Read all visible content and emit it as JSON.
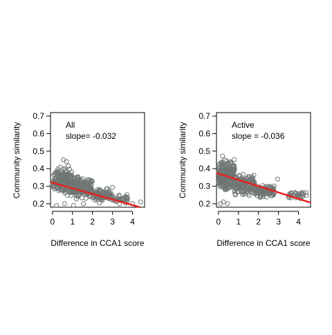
{
  "colors": {
    "points": "#6f7674",
    "fit_line": "#e8211f",
    "axes": "#000000"
  },
  "chart_data": [
    {
      "type": "scatter",
      "title": "",
      "xlabel": "Difference in CCA1 score",
      "ylabel": "Community similarity",
      "xlim": [
        -0.1,
        4.6
      ],
      "ylim": [
        0.18,
        0.72
      ],
      "xticks": [
        0,
        1,
        2,
        3,
        4
      ],
      "yticks": [
        0.2,
        0.3,
        0.4,
        0.5,
        0.6,
        0.7
      ],
      "annotation": {
        "label": "All",
        "slope_text": "slope= -0.032"
      },
      "fit": {
        "slope": -0.032,
        "intercept": 0.32
      },
      "grid": false,
      "point_groups": [
        {
          "x_range": [
            0.0,
            1.0
          ],
          "y_range": [
            0.22,
            0.43
          ],
          "count": 200
        },
        {
          "x_range": [
            1.0,
            2.0
          ],
          "y_range": [
            0.21,
            0.38
          ],
          "count": 160
        },
        {
          "x_range": [
            2.0,
            3.0
          ],
          "y_range": [
            0.2,
            0.3
          ],
          "count": 100
        },
        {
          "x_range": [
            3.0,
            3.8
          ],
          "y_range": [
            0.19,
            0.26
          ],
          "count": 30
        }
      ],
      "extra_points": [
        {
          "x": 0.55,
          "y": 0.45
        },
        {
          "x": 0.7,
          "y": 0.44
        },
        {
          "x": 0.2,
          "y": 0.19
        },
        {
          "x": 0.6,
          "y": 0.2
        },
        {
          "x": 1.05,
          "y": 0.19
        },
        {
          "x": 1.55,
          "y": 0.2
        },
        {
          "x": 4.0,
          "y": 0.2
        },
        {
          "x": 4.4,
          "y": 0.21
        },
        {
          "x": 3.7,
          "y": 0.21
        }
      ]
    },
    {
      "type": "scatter",
      "title": "",
      "xlabel": "Difference in CCA1 score",
      "ylabel": "Community similarity",
      "xlim": [
        -0.1,
        4.6
      ],
      "ylim": [
        0.18,
        0.72
      ],
      "xticks": [
        0,
        1,
        2,
        3,
        4
      ],
      "yticks": [
        0.2,
        0.3,
        0.4,
        0.5,
        0.6,
        0.7
      ],
      "annotation": {
        "label": "Active",
        "slope_text": "slope =  -0.036"
      },
      "fit": {
        "slope": -0.036,
        "intercept": 0.372
      },
      "grid": false,
      "point_groups": [
        {
          "x_range": [
            0.0,
            0.8
          ],
          "y_range": [
            0.24,
            0.48
          ],
          "count": 220
        },
        {
          "x_range": [
            0.8,
            1.8
          ],
          "y_range": [
            0.23,
            0.38
          ],
          "count": 150
        },
        {
          "x_range": [
            1.8,
            2.8
          ],
          "y_range": [
            0.22,
            0.32
          ],
          "count": 110
        },
        {
          "x_range": [
            3.5,
            4.4
          ],
          "y_range": [
            0.22,
            0.28
          ],
          "count": 30
        }
      ],
      "extra_points": [
        {
          "x": 0.1,
          "y": 0.2
        },
        {
          "x": 0.25,
          "y": 0.21
        },
        {
          "x": 0.45,
          "y": 0.2
        },
        {
          "x": 2.95,
          "y": 0.34
        },
        {
          "x": 2.75,
          "y": 0.25
        },
        {
          "x": 3.5,
          "y": 0.24
        }
      ]
    }
  ]
}
